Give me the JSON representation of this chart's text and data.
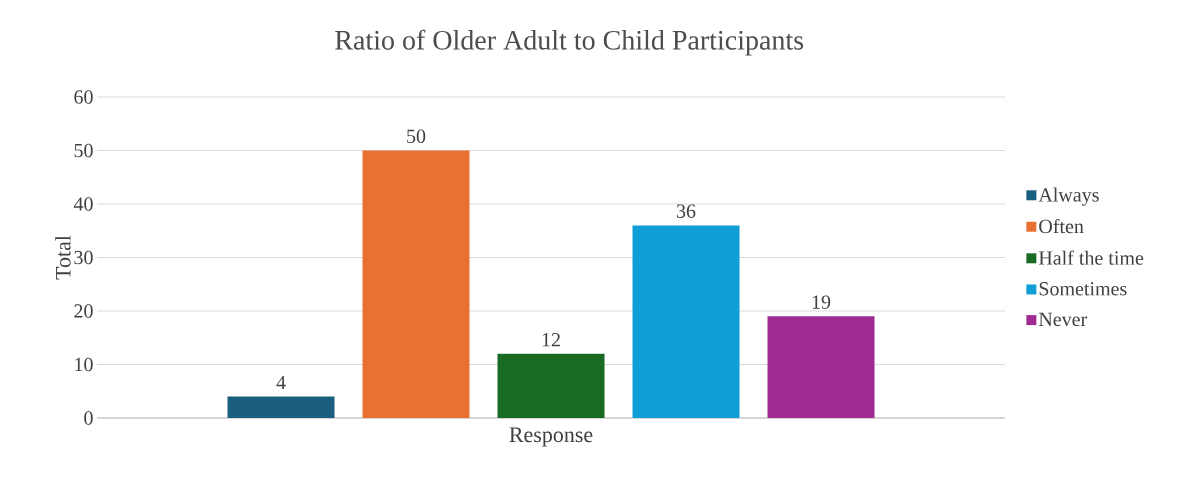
{
  "chart_data": {
    "type": "bar",
    "title": "Ratio of Older Adult to Child Participants",
    "xlabel": "Response",
    "ylabel": "Total",
    "categories": [
      null
    ],
    "series": [
      {
        "name": "Always",
        "color": "#1a5e80",
        "values": [
          4
        ]
      },
      {
        "name": "Often",
        "color": "#e97132",
        "values": [
          50
        ]
      },
      {
        "name": "Half the time",
        "color": "#196b24",
        "values": [
          12
        ]
      },
      {
        "name": "Sometimes",
        "color": "#0f9ed5",
        "values": [
          36
        ]
      },
      {
        "name": "Never",
        "color": "#a02b93",
        "values": [
          19
        ]
      }
    ],
    "ylim": [
      0,
      60
    ],
    "yticks": [
      0,
      10,
      20,
      30,
      40,
      50,
      60
    ],
    "grid": "y",
    "legend": "right",
    "data_labels": true
  }
}
